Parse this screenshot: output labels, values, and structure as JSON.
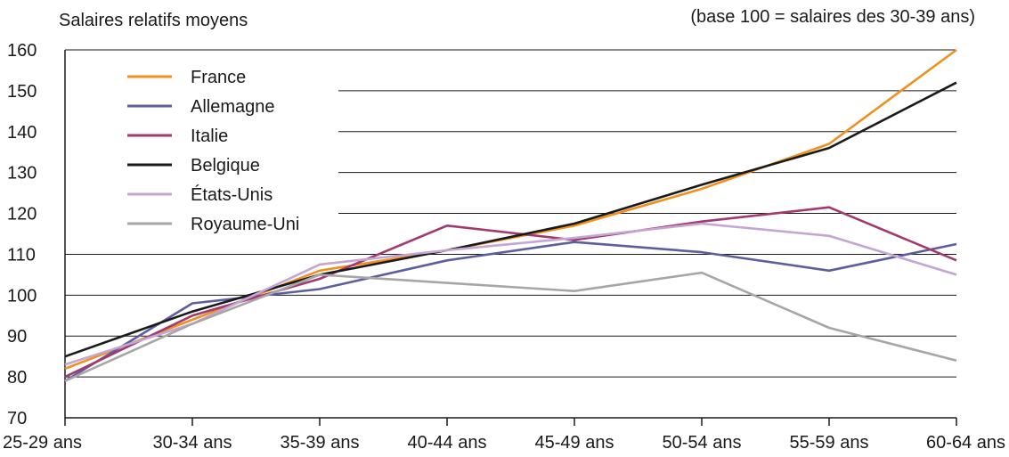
{
  "chart_data": {
    "type": "line",
    "ylabel": "Salaires relatifs moyens",
    "note": "(base 100 = salaires des 30-39 ans)",
    "categories": [
      "25-29 ans",
      "30-34 ans",
      "35-39 ans",
      "40-44 ans",
      "45-49 ans",
      "50-54 ans",
      "55-59 ans",
      "60-64 ans"
    ],
    "yticks": [
      70,
      80,
      90,
      100,
      110,
      120,
      130,
      140,
      150,
      160
    ],
    "ylim": [
      70,
      160
    ],
    "grid": "horizontal",
    "legend_position": "top-left",
    "series": [
      {
        "name": "France",
        "color": "#F0901E",
        "values": [
          82,
          94,
          106,
          111,
          117,
          126,
          137,
          160
        ]
      },
      {
        "name": "Allemagne",
        "color": "#5B5F9E",
        "values": [
          79,
          98,
          101.5,
          108.5,
          113,
          110.5,
          106,
          112.5
        ]
      },
      {
        "name": "Italie",
        "color": "#A23A6E",
        "values": [
          80,
          95,
          104,
          117,
          113.5,
          118,
          121.5,
          108.5
        ]
      },
      {
        "name": "Belgique",
        "color": "#1A1A1A",
        "values": [
          85,
          96,
          105,
          111,
          117.5,
          127,
          136,
          152
        ]
      },
      {
        "name": "États-Unis",
        "color": "#C4A6D4",
        "values": [
          83,
          93,
          107.5,
          111,
          114,
          117.5,
          114.5,
          105
        ]
      },
      {
        "name": "Royaume-Uni",
        "color": "#A6A6A6",
        "values": [
          79,
          93,
          105,
          103,
          101,
          105.5,
          92,
          84
        ]
      }
    ]
  }
}
